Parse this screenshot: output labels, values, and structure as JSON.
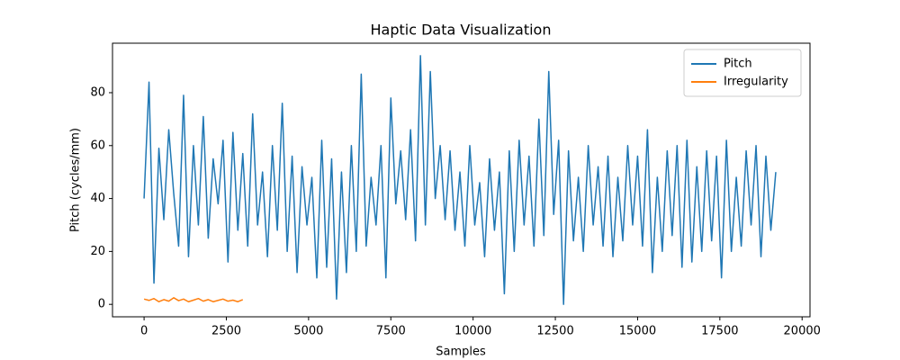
{
  "chart_data": {
    "type": "line",
    "title": "Haptic Data Visualization",
    "xlabel": "Samples",
    "ylabel": "Pitch (cycles/mm)",
    "xlim": [
      -960,
      20240
    ],
    "ylim": [
      -4.7,
      98.7
    ],
    "xticks": [
      0,
      2500,
      5000,
      7500,
      10000,
      12500,
      15000,
      17500,
      20000
    ],
    "yticks": [
      0,
      20,
      40,
      60,
      80
    ],
    "grid": false,
    "legend": "upper right",
    "series": [
      {
        "name": "Pitch",
        "color": "#1f77b4",
        "x": [
          0,
          150,
          300,
          450,
          600,
          750,
          900,
          1050,
          1200,
          1350,
          1500,
          1650,
          1800,
          1950,
          2100,
          2250,
          2400,
          2550,
          2700,
          2850,
          3000,
          3150,
          3300,
          3450,
          3600,
          3750,
          3900,
          4050,
          4200,
          4350,
          4500,
          4650,
          4800,
          4950,
          5100,
          5250,
          5400,
          5550,
          5700,
          5850,
          6000,
          6150,
          6300,
          6450,
          6600,
          6750,
          6900,
          7050,
          7200,
          7350,
          7500,
          7650,
          7800,
          7950,
          8100,
          8250,
          8400,
          8550,
          8700,
          8850,
          9000,
          9150,
          9300,
          9450,
          9600,
          9750,
          9900,
          10050,
          10200,
          10350,
          10500,
          10650,
          10800,
          10950,
          11100,
          11250,
          11400,
          11550,
          11700,
          11850,
          12000,
          12150,
          12300,
          12450,
          12600,
          12750,
          12900,
          13050,
          13200,
          13350,
          13500,
          13650,
          13800,
          13950,
          14100,
          14250,
          14400,
          14550,
          14700,
          14850,
          15000,
          15150,
          15300,
          15450,
          15600,
          15750,
          15900,
          16050,
          16200,
          16350,
          16500,
          16650,
          16800,
          16950,
          17100,
          17250,
          17400,
          17550,
          17700,
          17850,
          18000,
          18150,
          18300,
          18450,
          18600,
          18750,
          18900,
          19050,
          19200
        ],
        "values": [
          40,
          84,
          8,
          59,
          32,
          66,
          42,
          22,
          79,
          18,
          60,
          30,
          71,
          25,
          55,
          38,
          62,
          16,
          65,
          28,
          57,
          22,
          72,
          30,
          50,
          18,
          60,
          28,
          76,
          20,
          56,
          12,
          52,
          30,
          48,
          10,
          62,
          14,
          55,
          2,
          50,
          12,
          60,
          20,
          87,
          22,
          48,
          30,
          60,
          10,
          78,
          38,
          58,
          32,
          66,
          24,
          94,
          30,
          88,
          40,
          60,
          32,
          58,
          28,
          50,
          22,
          60,
          30,
          46,
          18,
          55,
          28,
          50,
          4,
          58,
          20,
          62,
          30,
          56,
          22,
          70,
          26,
          88,
          34,
          62,
          0,
          58,
          24,
          48,
          20,
          60,
          30,
          52,
          22,
          56,
          18,
          48,
          24,
          60,
          30,
          56,
          22,
          66,
          12,
          48,
          20,
          58,
          26,
          60,
          14,
          62,
          16,
          52,
          20,
          58,
          24,
          56,
          10,
          62,
          20,
          48,
          22,
          58,
          30,
          60,
          18,
          56,
          28,
          50
        ]
      },
      {
        "name": "Irregularity",
        "color": "#ff7f0e",
        "x": [
          0,
          150,
          300,
          450,
          600,
          750,
          900,
          1050,
          1200,
          1350,
          1500,
          1650,
          1800,
          1950,
          2100,
          2250,
          2400,
          2550,
          2700,
          2850,
          3000
        ],
        "values": [
          2,
          1.5,
          2.2,
          1,
          1.8,
          1.2,
          2.5,
          1.4,
          2,
          1,
          1.6,
          2.2,
          1.2,
          1.8,
          1,
          1.5,
          2,
          1.2,
          1.6,
          1,
          1.8
        ]
      }
    ]
  }
}
